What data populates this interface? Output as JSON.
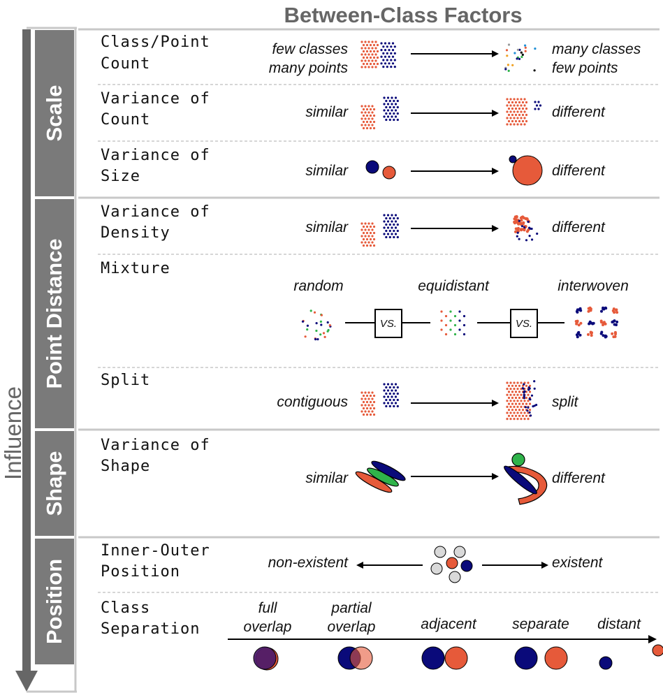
{
  "title": "Between-Class Factors",
  "axis_label": "Influence",
  "groups": [
    "Scale",
    "Point Distance",
    "Shape",
    "Position"
  ],
  "factors": {
    "class_point_count": {
      "name": [
        "Class/Point",
        "Count"
      ],
      "left": [
        "few classes",
        "many points"
      ],
      "right": [
        "many classes",
        "few points"
      ]
    },
    "variance_of_count": {
      "name": [
        "Variance of",
        "Count"
      ],
      "left": "similar",
      "right": "different"
    },
    "variance_of_size": {
      "name": [
        "Variance of",
        "Size"
      ],
      "left": "similar",
      "right": "different"
    },
    "variance_of_density": {
      "name": [
        "Variance of",
        "Density"
      ],
      "left": "similar",
      "right": "different"
    },
    "mixture": {
      "name": [
        "Mixture"
      ],
      "options": [
        "random",
        "equidistant",
        "interwoven"
      ],
      "vs": "VS."
    },
    "split": {
      "name": [
        "Split"
      ],
      "left": "contiguous",
      "right": "split"
    },
    "variance_of_shape": {
      "name": [
        "Variance of",
        "Shape"
      ],
      "left": "similar",
      "right": "different"
    },
    "inner_outer_position": {
      "name": [
        "Inner-Outer",
        "Position"
      ],
      "left": "non-existent",
      "right": "existent"
    },
    "class_separation": {
      "name": [
        "Class",
        "Separation"
      ],
      "stages": [
        [
          "full",
          "overlap"
        ],
        [
          "partial",
          "overlap"
        ],
        [
          "adjacent"
        ],
        [
          "separate"
        ],
        [
          "distant"
        ]
      ]
    }
  },
  "colors": {
    "orange": "#e65a3a",
    "navy": "#0a0a7a",
    "green": "#2fb34a",
    "gray": "#666666",
    "light_gray": "#d9d9d9",
    "group_bar": "#7a7a7a"
  }
}
